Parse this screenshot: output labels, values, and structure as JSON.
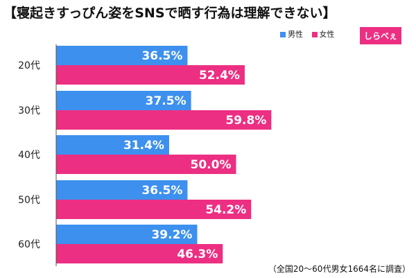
{
  "title": "【寝起きすっぴん姿をSNSで晒す行為は理解できない】",
  "legend": [
    {
      "label": "男性",
      "color": "#3d90ee"
    },
    {
      "label": "女性",
      "color": "#ec2f82"
    }
  ],
  "logo": {
    "text": "しらべぇ"
  },
  "footnote": "（全国20～60代男女1664名に調査）",
  "chart_data": {
    "type": "bar",
    "orientation": "horizontal",
    "categories": [
      "20代",
      "30代",
      "40代",
      "50代",
      "60代"
    ],
    "series": [
      {
        "name": "男性",
        "values": [
          36.5,
          37.5,
          31.4,
          36.5,
          39.2
        ],
        "color": "#3d90ee"
      },
      {
        "name": "女性",
        "values": [
          52.4,
          59.8,
          50.0,
          54.2,
          46.3
        ],
        "color": "#ec2f82"
      }
    ],
    "value_suffix": "%",
    "xlim": [
      0,
      100
    ],
    "grid": false,
    "legend_position": "top-right"
  }
}
